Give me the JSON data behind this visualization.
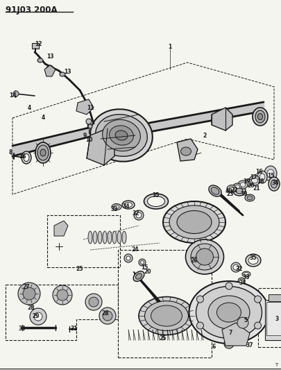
{
  "title": "91J03 200 A",
  "bg_color": "#f5f5f0",
  "line_color": "#1a1a1a",
  "fig_width": 4.05,
  "fig_height": 5.33,
  "dpi": 100
}
